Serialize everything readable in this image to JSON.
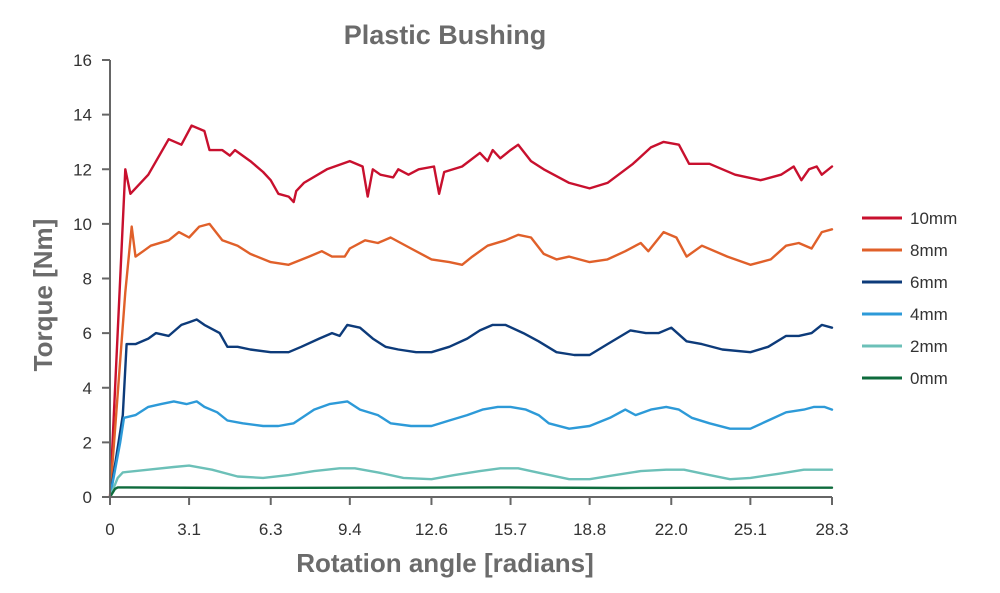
{
  "chart_data": {
    "type": "line",
    "title": "Plastic Bushing",
    "xlabel": "Rotation angle [radians]",
    "ylabel": "Torque [Nm]",
    "xlim": [
      0,
      28.3
    ],
    "ylim": [
      0,
      16
    ],
    "x_ticks": [
      0,
      3.1,
      6.3,
      9.4,
      12.6,
      15.7,
      18.8,
      22.0,
      25.1,
      28.3
    ],
    "x_tick_labels": [
      "0",
      "3.1",
      "6.3",
      "9.4",
      "12.6",
      "15.7",
      "18.8",
      "22.0",
      "25.1",
      "28.3"
    ],
    "y_ticks": [
      0,
      2,
      4,
      6,
      8,
      10,
      12,
      14,
      16
    ],
    "y_tick_labels": [
      "0",
      "2",
      "4",
      "6",
      "8",
      "10",
      "12",
      "14",
      "16"
    ],
    "legend_position": "right",
    "grid": false,
    "series": [
      {
        "name": "10mm",
        "color": "#c8102e",
        "points": [
          [
            0,
            0
          ],
          [
            0.6,
            12.0
          ],
          [
            0.8,
            11.1
          ],
          [
            1.5,
            11.8
          ],
          [
            2.3,
            13.1
          ],
          [
            2.8,
            12.9
          ],
          [
            3.2,
            13.6
          ],
          [
            3.7,
            13.4
          ],
          [
            3.9,
            12.7
          ],
          [
            4.4,
            12.7
          ],
          [
            4.7,
            12.5
          ],
          [
            4.9,
            12.7
          ],
          [
            5.5,
            12.3
          ],
          [
            6.0,
            11.9
          ],
          [
            6.3,
            11.6
          ],
          [
            6.6,
            11.1
          ],
          [
            7.0,
            11.0
          ],
          [
            7.2,
            10.8
          ],
          [
            7.3,
            11.2
          ],
          [
            7.6,
            11.5
          ],
          [
            8.5,
            12.0
          ],
          [
            9.4,
            12.3
          ],
          [
            9.9,
            12.1
          ],
          [
            10.1,
            11.0
          ],
          [
            10.3,
            12.0
          ],
          [
            10.6,
            11.8
          ],
          [
            11.1,
            11.7
          ],
          [
            11.3,
            12.0
          ],
          [
            11.7,
            11.8
          ],
          [
            12.1,
            12.0
          ],
          [
            12.7,
            12.1
          ],
          [
            12.9,
            11.1
          ],
          [
            13.1,
            11.9
          ],
          [
            13.8,
            12.1
          ],
          [
            14.5,
            12.6
          ],
          [
            14.8,
            12.3
          ],
          [
            15.0,
            12.7
          ],
          [
            15.3,
            12.4
          ],
          [
            15.7,
            12.7
          ],
          [
            16.0,
            12.9
          ],
          [
            16.5,
            12.3
          ],
          [
            17.0,
            12.0
          ],
          [
            18.0,
            11.5
          ],
          [
            18.8,
            11.3
          ],
          [
            19.5,
            11.5
          ],
          [
            20.5,
            12.2
          ],
          [
            21.2,
            12.8
          ],
          [
            21.7,
            13.0
          ],
          [
            22.3,
            12.9
          ],
          [
            22.7,
            12.2
          ],
          [
            23.5,
            12.2
          ],
          [
            24.5,
            11.8
          ],
          [
            25.5,
            11.6
          ],
          [
            26.3,
            11.8
          ],
          [
            26.8,
            12.1
          ],
          [
            27.1,
            11.6
          ],
          [
            27.4,
            12.0
          ],
          [
            27.7,
            12.1
          ],
          [
            27.9,
            11.8
          ],
          [
            28.3,
            12.1
          ]
        ]
      },
      {
        "name": "8mm",
        "color": "#e0602a",
        "points": [
          [
            0,
            0
          ],
          [
            0.6,
            7.5
          ],
          [
            0.85,
            9.9
          ],
          [
            1.0,
            8.8
          ],
          [
            1.3,
            9.0
          ],
          [
            1.6,
            9.2
          ],
          [
            2.3,
            9.4
          ],
          [
            2.7,
            9.7
          ],
          [
            3.1,
            9.5
          ],
          [
            3.5,
            9.9
          ],
          [
            3.9,
            10.0
          ],
          [
            4.4,
            9.4
          ],
          [
            5.0,
            9.2
          ],
          [
            5.5,
            8.9
          ],
          [
            6.3,
            8.6
          ],
          [
            7.0,
            8.5
          ],
          [
            7.8,
            8.8
          ],
          [
            8.3,
            9.0
          ],
          [
            8.7,
            8.8
          ],
          [
            9.2,
            8.8
          ],
          [
            9.4,
            9.1
          ],
          [
            10.0,
            9.4
          ],
          [
            10.5,
            9.3
          ],
          [
            11.0,
            9.5
          ],
          [
            11.8,
            9.1
          ],
          [
            12.6,
            8.7
          ],
          [
            13.3,
            8.6
          ],
          [
            13.8,
            8.5
          ],
          [
            14.2,
            8.8
          ],
          [
            14.8,
            9.2
          ],
          [
            15.5,
            9.4
          ],
          [
            16.0,
            9.6
          ],
          [
            16.5,
            9.5
          ],
          [
            17.0,
            8.9
          ],
          [
            17.5,
            8.7
          ],
          [
            18.0,
            8.8
          ],
          [
            18.8,
            8.6
          ],
          [
            19.5,
            8.7
          ],
          [
            20.2,
            9.0
          ],
          [
            20.8,
            9.3
          ],
          [
            21.1,
            9.0
          ],
          [
            21.7,
            9.7
          ],
          [
            22.2,
            9.5
          ],
          [
            22.6,
            8.8
          ],
          [
            23.2,
            9.2
          ],
          [
            24.2,
            8.8
          ],
          [
            25.1,
            8.5
          ],
          [
            25.9,
            8.7
          ],
          [
            26.5,
            9.2
          ],
          [
            27.0,
            9.3
          ],
          [
            27.5,
            9.1
          ],
          [
            27.9,
            9.7
          ],
          [
            28.3,
            9.8
          ]
        ]
      },
      {
        "name": "6mm",
        "color": "#0d3b7a",
        "points": [
          [
            0,
            0
          ],
          [
            0.5,
            3.0
          ],
          [
            0.65,
            5.6
          ],
          [
            1.0,
            5.6
          ],
          [
            1.5,
            5.8
          ],
          [
            1.8,
            6.0
          ],
          [
            2.3,
            5.9
          ],
          [
            2.8,
            6.3
          ],
          [
            3.1,
            6.4
          ],
          [
            3.4,
            6.5
          ],
          [
            3.7,
            6.3
          ],
          [
            4.3,
            6.0
          ],
          [
            4.6,
            5.5
          ],
          [
            5.0,
            5.5
          ],
          [
            5.5,
            5.4
          ],
          [
            6.3,
            5.3
          ],
          [
            7.0,
            5.3
          ],
          [
            7.5,
            5.5
          ],
          [
            8.2,
            5.8
          ],
          [
            8.7,
            6.0
          ],
          [
            9.0,
            5.9
          ],
          [
            9.3,
            6.3
          ],
          [
            9.8,
            6.2
          ],
          [
            10.3,
            5.8
          ],
          [
            10.8,
            5.5
          ],
          [
            11.3,
            5.4
          ],
          [
            12.0,
            5.3
          ],
          [
            12.6,
            5.3
          ],
          [
            13.3,
            5.5
          ],
          [
            14.0,
            5.8
          ],
          [
            14.5,
            6.1
          ],
          [
            15.0,
            6.3
          ],
          [
            15.5,
            6.3
          ],
          [
            16.2,
            6.0
          ],
          [
            16.8,
            5.7
          ],
          [
            17.5,
            5.3
          ],
          [
            18.2,
            5.2
          ],
          [
            18.8,
            5.2
          ],
          [
            19.5,
            5.6
          ],
          [
            20.4,
            6.1
          ],
          [
            21.0,
            6.0
          ],
          [
            21.5,
            6.0
          ],
          [
            22.0,
            6.2
          ],
          [
            22.6,
            5.7
          ],
          [
            23.2,
            5.6
          ],
          [
            24.0,
            5.4
          ],
          [
            25.1,
            5.3
          ],
          [
            25.8,
            5.5
          ],
          [
            26.5,
            5.9
          ],
          [
            27.0,
            5.9
          ],
          [
            27.5,
            6.0
          ],
          [
            27.9,
            6.3
          ],
          [
            28.3,
            6.2
          ]
        ]
      },
      {
        "name": "4mm",
        "color": "#2d9ad8",
        "points": [
          [
            0,
            0
          ],
          [
            0.4,
            2.0
          ],
          [
            0.55,
            2.9
          ],
          [
            1.0,
            3.0
          ],
          [
            1.5,
            3.3
          ],
          [
            2.0,
            3.4
          ],
          [
            2.5,
            3.5
          ],
          [
            3.0,
            3.4
          ],
          [
            3.4,
            3.5
          ],
          [
            3.7,
            3.3
          ],
          [
            4.2,
            3.1
          ],
          [
            4.6,
            2.8
          ],
          [
            5.2,
            2.7
          ],
          [
            6.0,
            2.6
          ],
          [
            6.6,
            2.6
          ],
          [
            7.2,
            2.7
          ],
          [
            8.0,
            3.2
          ],
          [
            8.6,
            3.4
          ],
          [
            9.3,
            3.5
          ],
          [
            9.8,
            3.2
          ],
          [
            10.5,
            3.0
          ],
          [
            11.0,
            2.7
          ],
          [
            11.8,
            2.6
          ],
          [
            12.6,
            2.6
          ],
          [
            13.3,
            2.8
          ],
          [
            14.0,
            3.0
          ],
          [
            14.6,
            3.2
          ],
          [
            15.2,
            3.3
          ],
          [
            15.7,
            3.3
          ],
          [
            16.3,
            3.2
          ],
          [
            16.8,
            3.0
          ],
          [
            17.2,
            2.7
          ],
          [
            18.0,
            2.5
          ],
          [
            18.8,
            2.6
          ],
          [
            19.6,
            2.9
          ],
          [
            20.2,
            3.2
          ],
          [
            20.6,
            3.0
          ],
          [
            21.2,
            3.2
          ],
          [
            21.8,
            3.3
          ],
          [
            22.3,
            3.2
          ],
          [
            22.8,
            2.9
          ],
          [
            23.5,
            2.7
          ],
          [
            24.3,
            2.5
          ],
          [
            25.1,
            2.5
          ],
          [
            25.8,
            2.8
          ],
          [
            26.5,
            3.1
          ],
          [
            27.2,
            3.2
          ],
          [
            27.6,
            3.3
          ],
          [
            28.0,
            3.3
          ],
          [
            28.3,
            3.2
          ]
        ]
      },
      {
        "name": "2mm",
        "color": "#6cc0b8",
        "points": [
          [
            0,
            0
          ],
          [
            0.3,
            0.7
          ],
          [
            0.5,
            0.9
          ],
          [
            1.5,
            1.0
          ],
          [
            2.5,
            1.1
          ],
          [
            3.1,
            1.15
          ],
          [
            4.0,
            1.0
          ],
          [
            5.0,
            0.75
          ],
          [
            6.0,
            0.7
          ],
          [
            7.0,
            0.8
          ],
          [
            8.0,
            0.95
          ],
          [
            9.0,
            1.05
          ],
          [
            9.6,
            1.05
          ],
          [
            10.5,
            0.9
          ],
          [
            11.5,
            0.7
          ],
          [
            12.6,
            0.65
          ],
          [
            13.5,
            0.8
          ],
          [
            14.5,
            0.95
          ],
          [
            15.3,
            1.05
          ],
          [
            16.0,
            1.05
          ],
          [
            17.0,
            0.85
          ],
          [
            18.0,
            0.65
          ],
          [
            18.8,
            0.65
          ],
          [
            19.8,
            0.8
          ],
          [
            20.8,
            0.95
          ],
          [
            21.8,
            1.0
          ],
          [
            22.5,
            1.0
          ],
          [
            23.5,
            0.8
          ],
          [
            24.3,
            0.65
          ],
          [
            25.1,
            0.7
          ],
          [
            26.2,
            0.85
          ],
          [
            27.2,
            1.0
          ],
          [
            28.3,
            1.0
          ]
        ]
      },
      {
        "name": "0mm",
        "color": "#0e6b3c",
        "points": [
          [
            0,
            0
          ],
          [
            0.2,
            0.3
          ],
          [
            0.3,
            0.35
          ],
          [
            5,
            0.33
          ],
          [
            10,
            0.34
          ],
          [
            15,
            0.35
          ],
          [
            20,
            0.33
          ],
          [
            25,
            0.34
          ],
          [
            28.3,
            0.34
          ]
        ]
      }
    ]
  }
}
